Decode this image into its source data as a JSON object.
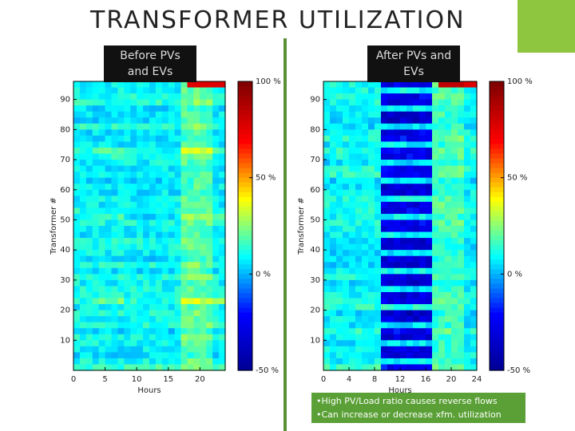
{
  "slide": {
    "title": "TRANSFORMER UTILIZATION",
    "label_before": "Before PVs and EVs",
    "label_after": "After PVs and EVs",
    "notes": [
      "•High PV/Load ratio causes reverse flows",
      "•Can increase or decrease xfm. utilization"
    ]
  },
  "chart_data": [
    {
      "type": "heatmap",
      "title": "",
      "xlabel": "Hours",
      "ylabel": "Transformer #",
      "xlim": [
        0,
        24
      ],
      "ylim": [
        0,
        96
      ],
      "xticks": [
        0,
        5,
        10,
        15,
        20
      ],
      "yticks": [
        10,
        20,
        30,
        40,
        50,
        60,
        70,
        80,
        90
      ],
      "colorbar": {
        "ticks": [
          "100 %",
          "50 %",
          "0 %",
          "-50 %"
        ],
        "range": [
          -50,
          100
        ]
      },
      "colormap": [
        "#00008f",
        "#0000ff",
        "#00ffff",
        "#ffff00",
        "#ff0000",
        "#800000"
      ]
    },
    {
      "type": "heatmap",
      "title": "",
      "xlabel": "Hours",
      "ylabel": "Transformer #",
      "xlim": [
        0,
        24
      ],
      "ylim": [
        0,
        96
      ],
      "xticks": [
        0,
        4,
        8,
        12,
        16,
        20,
        24
      ],
      "yticks": [
        10,
        20,
        30,
        40,
        50,
        60,
        70,
        80,
        90
      ],
      "colorbar": {
        "ticks": [
          "100 %",
          "50 %",
          "0 %",
          "-50 %"
        ],
        "range": [
          -50,
          100
        ]
      },
      "colormap": [
        "#00008f",
        "#0000ff",
        "#00ffff",
        "#ffff00",
        "#ff0000",
        "#800000"
      ]
    }
  ]
}
